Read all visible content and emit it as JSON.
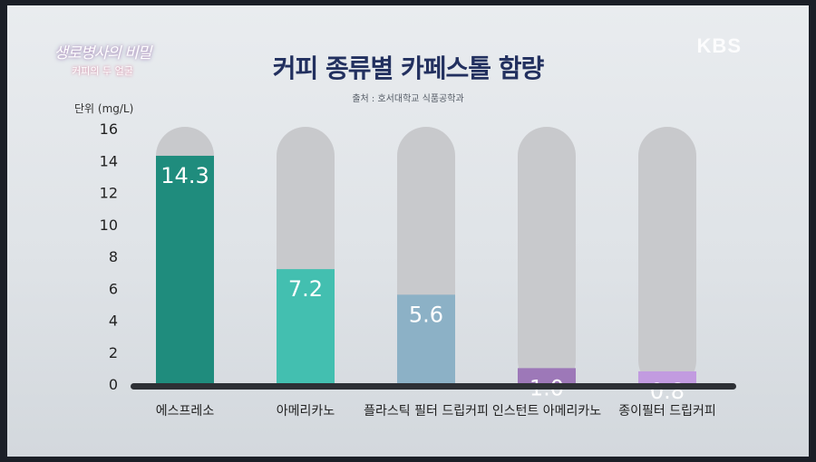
{
  "overlay": {
    "program_logo_line1": "생로병사의 비밀",
    "program_logo_line2": "커피의 두 얼굴",
    "broadcaster": "KBS"
  },
  "chart_data": {
    "type": "bar",
    "title": "커피 종류별 카페스톨 함량",
    "source": "출처 : 호서대학교 식품공학과",
    "ylabel": "단위 (mg/L)",
    "ylim": [
      0,
      16
    ],
    "yticks": [
      0,
      2,
      4,
      6,
      8,
      10,
      12,
      14,
      16
    ],
    "categories": [
      "에스프레소",
      "아메리카노",
      "플라스틱 필터 드립커피",
      "인스턴트 아메리카노",
      "종이필터 드립커피"
    ],
    "values": [
      14.3,
      7.2,
      5.6,
      1.0,
      0.8
    ],
    "value_labels": [
      "14.3",
      "7.2",
      "5.6",
      "1.0",
      "0.8"
    ],
    "colors": [
      "#1f8c7d",
      "#43bfb0",
      "#8cb1c6",
      "#9d78b8",
      "#c29be0"
    ],
    "track_color": "#c8c9cc"
  }
}
